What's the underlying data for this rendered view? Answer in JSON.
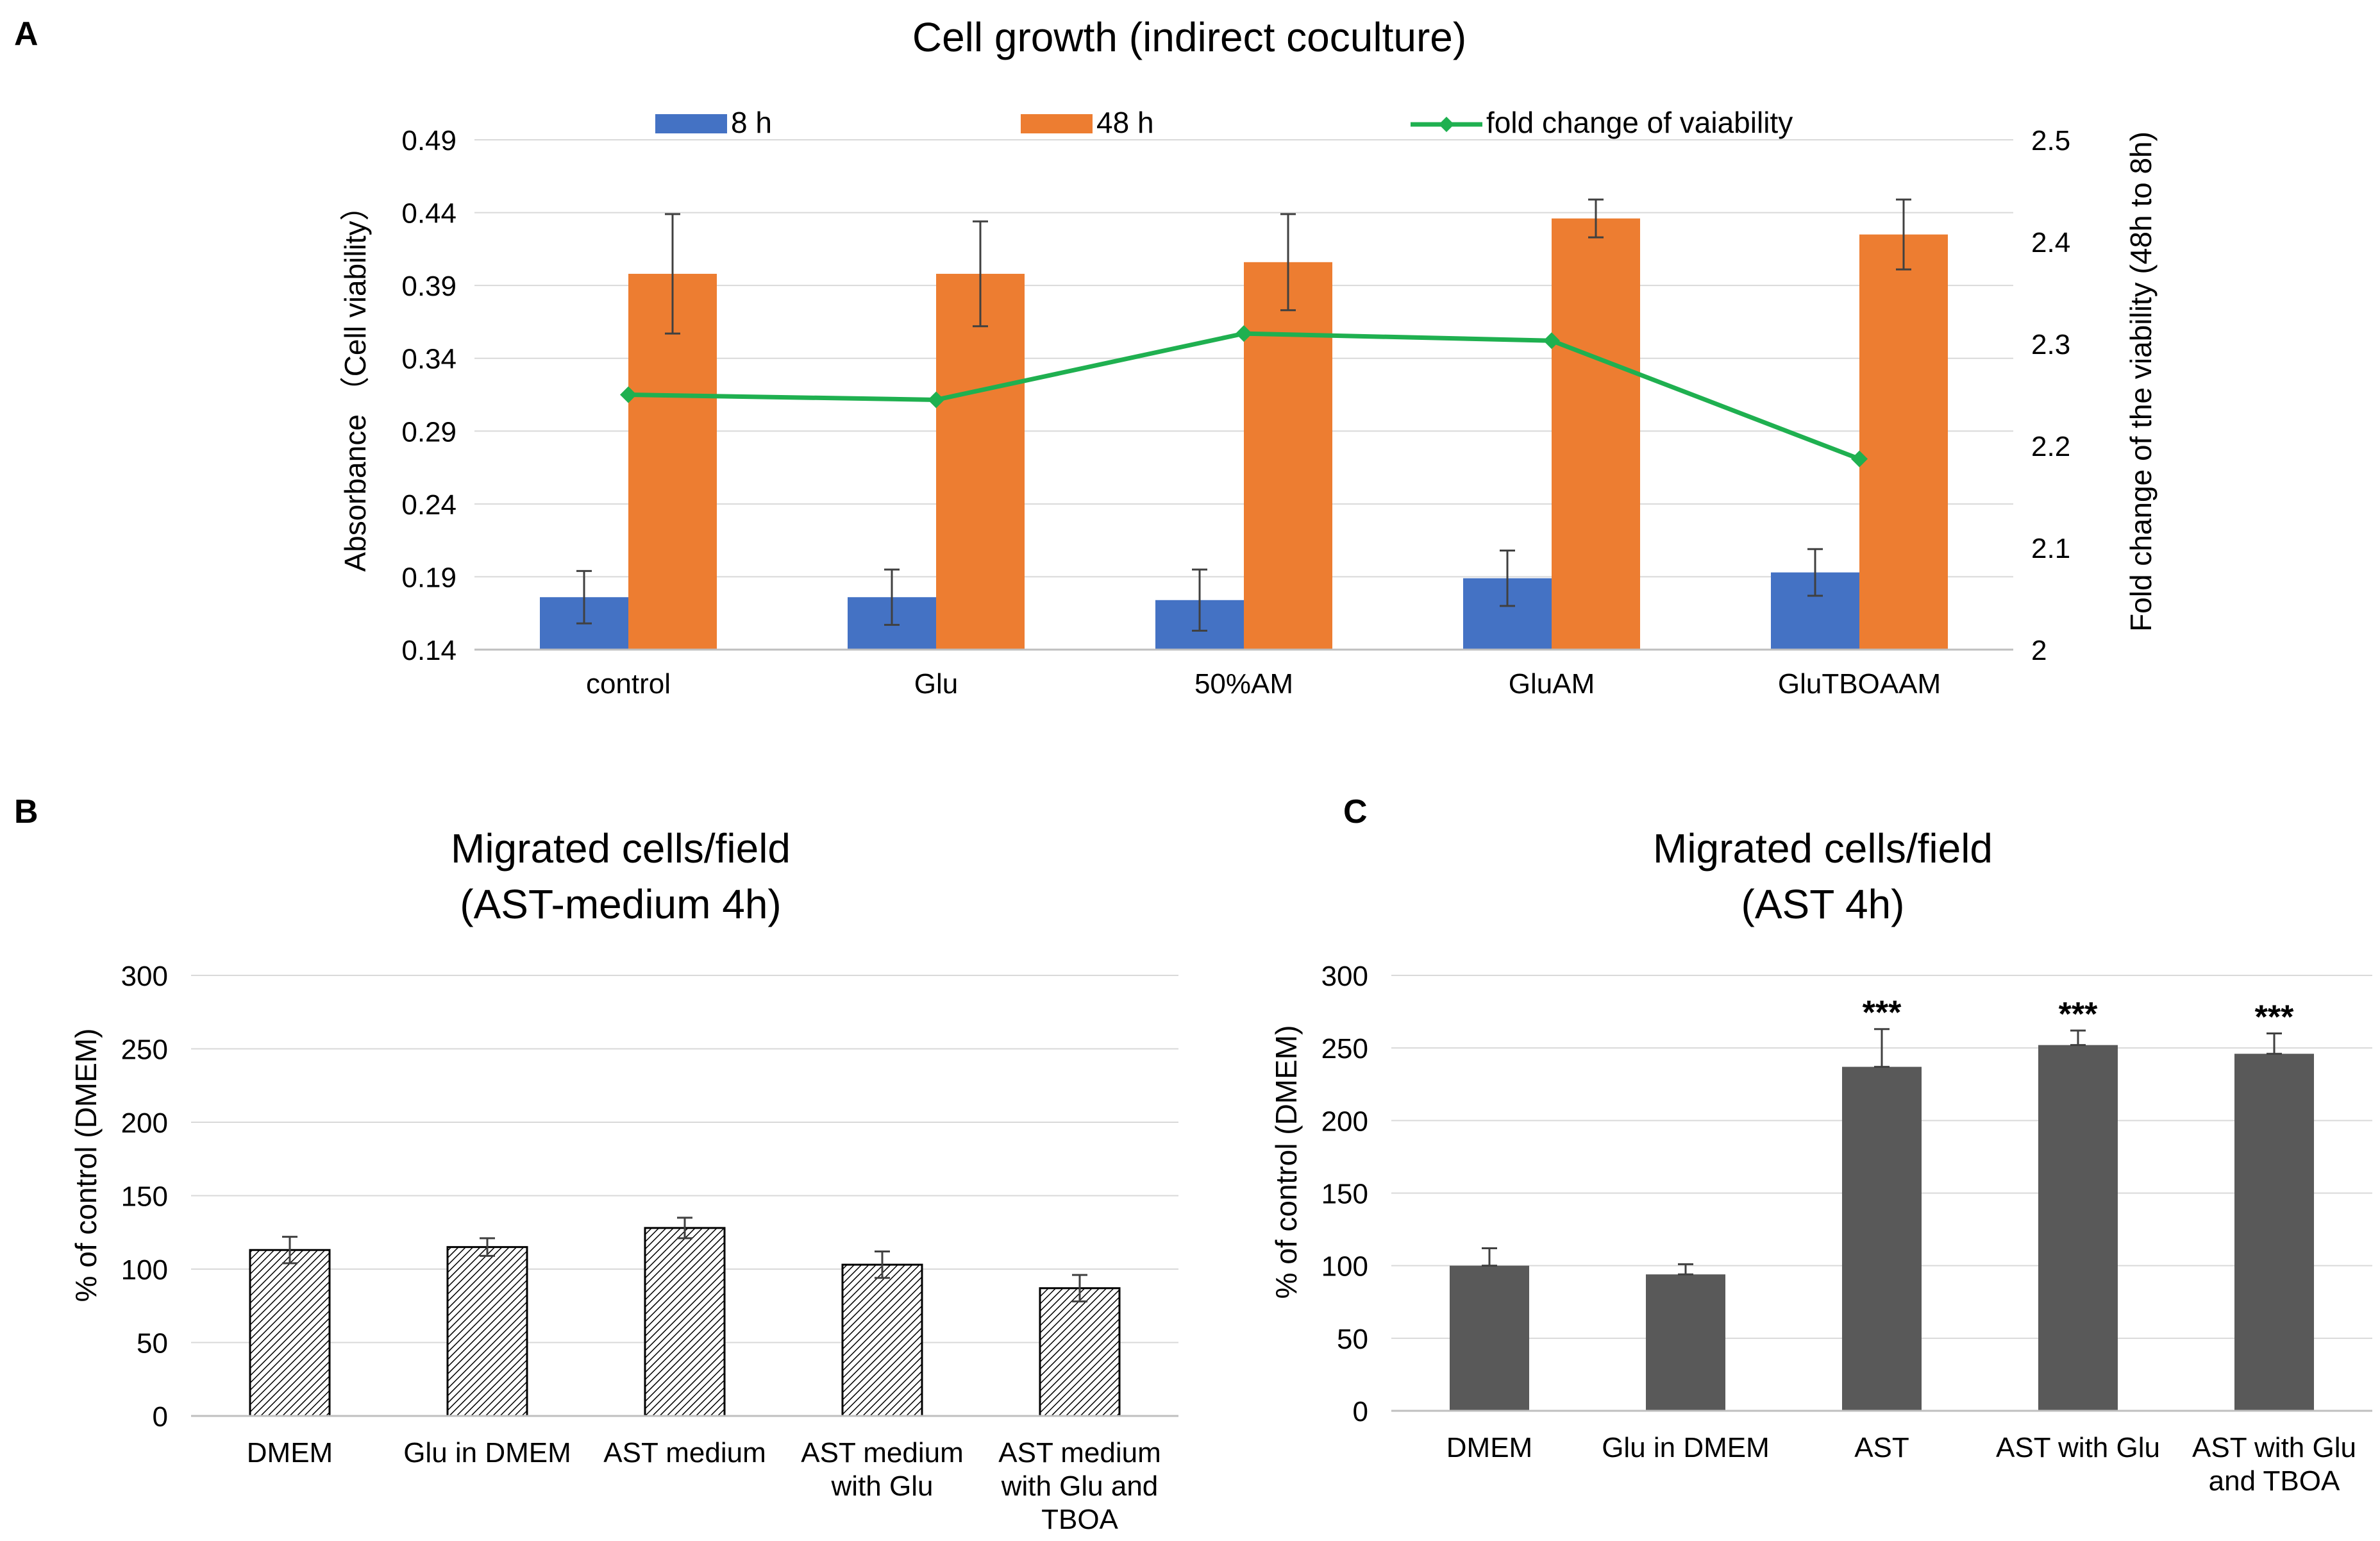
{
  "colors": {
    "bar_8h": "#4472C4",
    "bar_48h": "#ED7D31",
    "line": "#1FB050",
    "grid": "#D9D9D9",
    "axis": "#BFBFBF",
    "bar_c": "#595959",
    "error": "#404040"
  },
  "panels": {
    "a": "A",
    "b": "B",
    "c": "C"
  },
  "chart_data": [
    {
      "type": "bar",
      "panel": "A",
      "title": "Cell growth (indirect coculture)",
      "categories": [
        "control",
        "Glu",
        "50%AM",
        "GluAM",
        "GluTBOAAM"
      ],
      "ylabel": "Absorbance （Cell viability）",
      "ylabel_right": "Fold change of the viability (48h to 8h)",
      "ylim": [
        0.14,
        0.49
      ],
      "yticks": [
        "0.14",
        "0.19",
        "0.24",
        "0.29",
        "0.34",
        "0.39",
        "0.44",
        "0.49"
      ],
      "y2lim": [
        2,
        2.5
      ],
      "y2ticks": [
        "2",
        "2.1",
        "2.2",
        "2.3",
        "2.4",
        "2.5"
      ],
      "series": [
        {
          "name": "8 h",
          "values": [
            0.176,
            0.176,
            0.174,
            0.189,
            0.193
          ],
          "errors": [
            0.018,
            0.019,
            0.021,
            0.019,
            0.016
          ]
        },
        {
          "name": "48 h",
          "values": [
            0.398,
            0.398,
            0.406,
            0.436,
            0.425
          ],
          "errors": [
            0.041,
            0.036,
            0.033,
            0.013,
            0.024
          ]
        },
        {
          "name": "fold change of vaiability",
          "type": "line",
          "axis": "right",
          "values": [
            2.25,
            2.245,
            2.31,
            2.303,
            2.187
          ]
        }
      ],
      "legend": "top"
    },
    {
      "type": "bar",
      "panel": "B",
      "title": [
        "Migrated cells/field",
        "(AST-medium 4h)"
      ],
      "categories": [
        [
          "DMEM"
        ],
        [
          "Glu in DMEM"
        ],
        [
          "AST medium"
        ],
        [
          "AST medium",
          "with Glu"
        ],
        [
          "AST medium",
          "with Glu and",
          "TBOA"
        ]
      ],
      "ylabel": "% of control (DMEM)",
      "ylim": [
        0,
        300
      ],
      "yticks": [
        "0",
        "50",
        "100",
        "150",
        "200",
        "250",
        "300"
      ],
      "values": [
        113,
        115,
        128,
        103,
        87
      ],
      "errors": [
        9,
        6,
        7,
        9,
        9
      ],
      "fill": "hatched"
    },
    {
      "type": "bar",
      "panel": "C",
      "title": [
        "Migrated cells/field",
        "(AST 4h)"
      ],
      "categories": [
        [
          "DMEM"
        ],
        [
          "Glu in DMEM"
        ],
        [
          "AST"
        ],
        [
          "AST with Glu"
        ],
        [
          "AST with Glu",
          "and TBOA"
        ]
      ],
      "ylabel": "% of control (DMEM)",
      "ylim": [
        0,
        300
      ],
      "yticks": [
        "0",
        "50",
        "100",
        "150",
        "200",
        "250",
        "300"
      ],
      "values": [
        100,
        94,
        237,
        252,
        246
      ],
      "errors": [
        12,
        7,
        26,
        10,
        14
      ],
      "annotations": [
        "",
        "",
        "***",
        "***",
        "***"
      ]
    }
  ]
}
